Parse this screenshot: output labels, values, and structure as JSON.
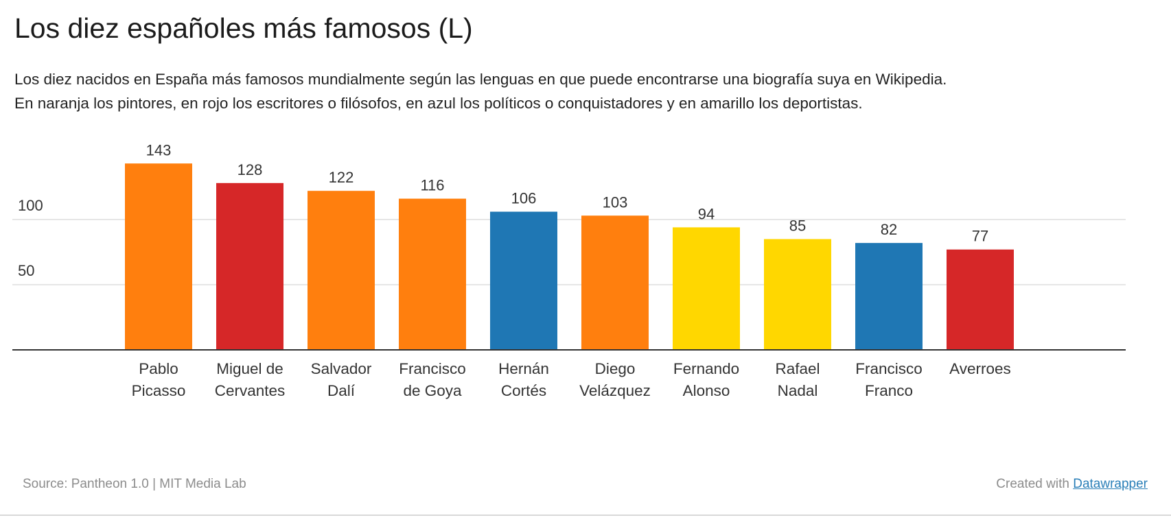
{
  "title": "Los diez españoles más famosos (L)",
  "subtitle_lines": [
    "Los diez nacidos en España más famosos mundialmente según las lenguas en que puede encontrarse una biografía suya en Wikipedia.",
    "En naranja los pintores, en rojo los escritores o filósofos, en azul los políticos o conquistadores y en amarillo los deportistas."
  ],
  "colors": {
    "pintores": "#ff7f0e",
    "escritores": "#d62728",
    "politicos": "#1f77b4",
    "deportistas": "#ffd700",
    "grid": "#dddddd",
    "axis": "#333333"
  },
  "chart_data": {
    "type": "bar",
    "categories": [
      [
        "Pablo",
        "Picasso"
      ],
      [
        "Miguel de",
        "Cervantes"
      ],
      [
        "Salvador",
        "Dalí"
      ],
      [
        "Francisco",
        "de Goya"
      ],
      [
        "Hernán",
        "Cortés"
      ],
      [
        "Diego",
        "Velázquez"
      ],
      [
        "Fernando",
        "Alonso"
      ],
      [
        "Rafael",
        "Nadal"
      ],
      [
        "Francisco",
        "Franco"
      ],
      [
        "Averroes"
      ]
    ],
    "values": [
      143,
      128,
      122,
      116,
      106,
      103,
      94,
      85,
      82,
      77
    ],
    "groups": [
      "pintores",
      "escritores",
      "pintores",
      "pintores",
      "politicos",
      "pintores",
      "deportistas",
      "deportistas",
      "politicos",
      "escritores"
    ],
    "y_ticks": [
      50,
      100
    ],
    "ylim": [
      0,
      150
    ],
    "grid": true,
    "xlabel": "",
    "ylabel": ""
  },
  "footer": {
    "source": "Source: Pantheon 1.0 | MIT Media Lab",
    "created_prefix": "Created with ",
    "created_link": "Datawrapper"
  }
}
